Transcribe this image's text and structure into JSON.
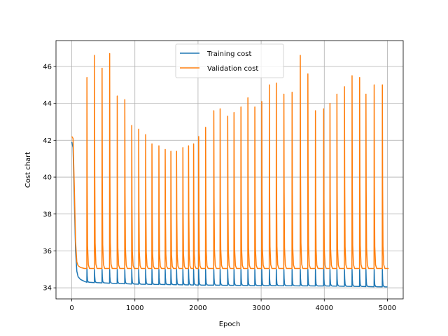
{
  "chart_data": {
    "type": "line",
    "title": "",
    "xlabel": "Epoch",
    "ylabel": "Cost chart",
    "xlim": [
      -250,
      5250
    ],
    "ylim": [
      33.4,
      47.4
    ],
    "xticks": [
      0,
      1000,
      2000,
      3000,
      4000,
      5000
    ],
    "yticks": [
      34,
      36,
      38,
      40,
      42,
      44,
      46
    ],
    "grid": true,
    "legend_position": "top-center",
    "spike_epochs": [
      240,
      360,
      480,
      600,
      720,
      840,
      950,
      1060,
      1170,
      1270,
      1380,
      1480,
      1570,
      1660,
      1760,
      1850,
      1930,
      2010,
      2120,
      2250,
      2350,
      2470,
      2570,
      2680,
      2790,
      2900,
      3010,
      3130,
      3240,
      3360,
      3490,
      3620,
      3740,
      3860,
      3990,
      4090,
      4200,
      4320,
      4440,
      4560,
      4660,
      4790,
      4920
    ],
    "series": [
      {
        "name": "Training cost",
        "color": "#1f77b4",
        "initial": {
          "x": [
            0,
            20,
            40,
            60,
            80,
            100,
            140,
            200,
            240
          ],
          "y": [
            41.9,
            41.6,
            38.8,
            36.0,
            34.9,
            34.6,
            34.45,
            34.35,
            34.3
          ]
        },
        "baseline": {
          "x": [
            240,
            600,
            1000,
            2000,
            3000,
            4000,
            5000
          ],
          "y": [
            34.3,
            34.25,
            34.2,
            34.15,
            34.12,
            34.1,
            34.05
          ]
        },
        "spike_peaks": [
          35.1,
          35.0,
          35.0,
          35.0,
          35.0,
          35.0,
          35.0,
          35.0,
          35.0,
          35.0,
          35.0,
          35.0,
          35.0,
          35.0,
          35.0,
          35.0,
          35.0,
          35.0,
          35.0,
          35.0,
          35.0,
          35.0,
          35.0,
          35.0,
          35.0,
          35.0,
          35.0,
          35.0,
          35.0,
          35.0,
          35.0,
          35.0,
          35.0,
          35.0,
          35.0,
          35.0,
          35.0,
          35.0,
          35.0,
          35.0,
          35.0,
          35.0,
          35.0
        ],
        "end": {
          "x": 5000,
          "y": 34.05
        }
      },
      {
        "name": "Validation cost",
        "color": "#ff7f0e",
        "initial": {
          "x": [
            0,
            20,
            40,
            60,
            80,
            100,
            140,
            200,
            240
          ],
          "y": [
            42.2,
            42.1,
            39.5,
            36.5,
            35.4,
            35.2,
            35.1,
            35.05,
            35.05
          ]
        },
        "baseline": {
          "x": [
            240,
            5000
          ],
          "y": [
            35.05,
            35.05
          ]
        },
        "spike_peaks": [
          45.4,
          46.6,
          45.9,
          46.7,
          44.4,
          44.2,
          42.8,
          42.6,
          42.3,
          41.8,
          41.7,
          41.5,
          41.4,
          41.4,
          41.6,
          41.7,
          41.8,
          42.2,
          42.7,
          43.6,
          43.7,
          43.3,
          43.5,
          43.8,
          44.3,
          43.8,
          44.1,
          45.0,
          45.1,
          44.5,
          44.6,
          46.6,
          45.6,
          43.6,
          43.7,
          44.0,
          44.5,
          44.9,
          45.5,
          45.4,
          44.5,
          45.0,
          45.0
        ],
        "end": {
          "x": 5020,
          "y": 35.05
        }
      }
    ]
  }
}
